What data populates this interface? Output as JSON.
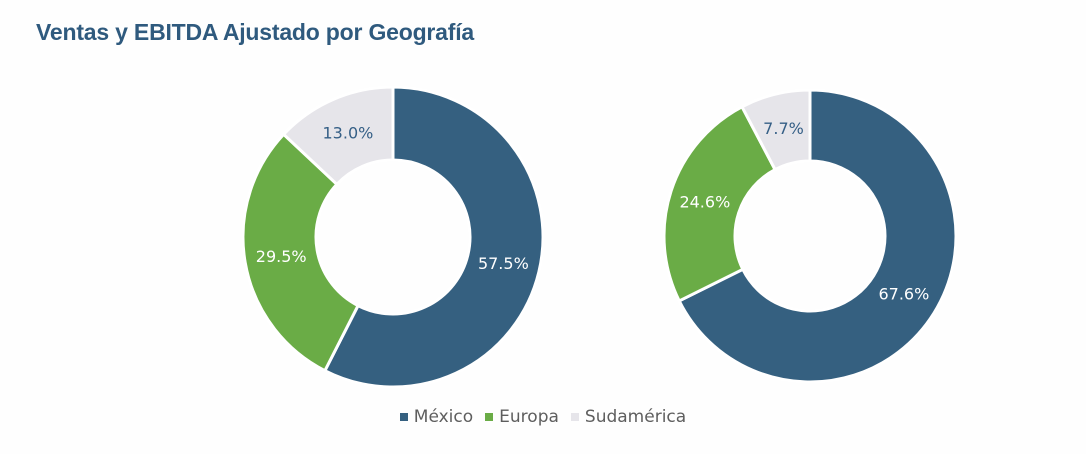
{
  "title": "Ventas y EBITDA Ajustado por Geografía",
  "colors": {
    "mexico": "#356080",
    "europa": "#6aac46",
    "sudamerica": "#e6e5ea",
    "title": "#2f5a7e",
    "label_light": "#ffffff",
    "label_dark": "#355f86"
  },
  "legend": [
    {
      "label": "México",
      "color": "#356080"
    },
    {
      "label": "Europa",
      "color": "#6aac46"
    },
    {
      "label": "Sudamérica",
      "color": "#e6e5ea"
    }
  ],
  "chart_data": [
    {
      "type": "pie",
      "variant": "donut",
      "title": "Ventas y EBITDA Ajustado por Geografía",
      "categories": [
        "México",
        "Europa",
        "Sudamérica"
      ],
      "values": [
        57.5,
        29.5,
        13.0
      ],
      "labels": [
        "57.5%",
        "29.5%",
        "13.0%"
      ],
      "colors": [
        "#356080",
        "#6aac46",
        "#e6e5ea"
      ],
      "legend_position": "bottom",
      "start_angle": "12 o'clock, clockwise"
    },
    {
      "type": "pie",
      "variant": "donut",
      "title": "Ventas y EBITDA Ajustado por Geografía",
      "categories": [
        "México",
        "Europa",
        "Sudamérica"
      ],
      "values": [
        67.6,
        24.6,
        7.7
      ],
      "labels": [
        "67.6%",
        "24.6%",
        "7.7%"
      ],
      "colors": [
        "#356080",
        "#6aac46",
        "#e6e5ea"
      ],
      "legend_position": "bottom",
      "start_angle": "12 o'clock, clockwise"
    }
  ]
}
